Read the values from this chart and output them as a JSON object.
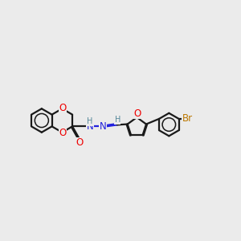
{
  "background_color": "#ebebeb",
  "bond_color": "#1a1a1a",
  "oxygen_color": "#ee0000",
  "nitrogen_color": "#2222dd",
  "bromine_color": "#bb7700",
  "hydrogen_color": "#558899",
  "line_width": 1.6,
  "fig_width": 3.0,
  "fig_height": 3.0,
  "dpi": 100,
  "xlim": [
    0,
    12
  ],
  "ylim": [
    2,
    8
  ]
}
